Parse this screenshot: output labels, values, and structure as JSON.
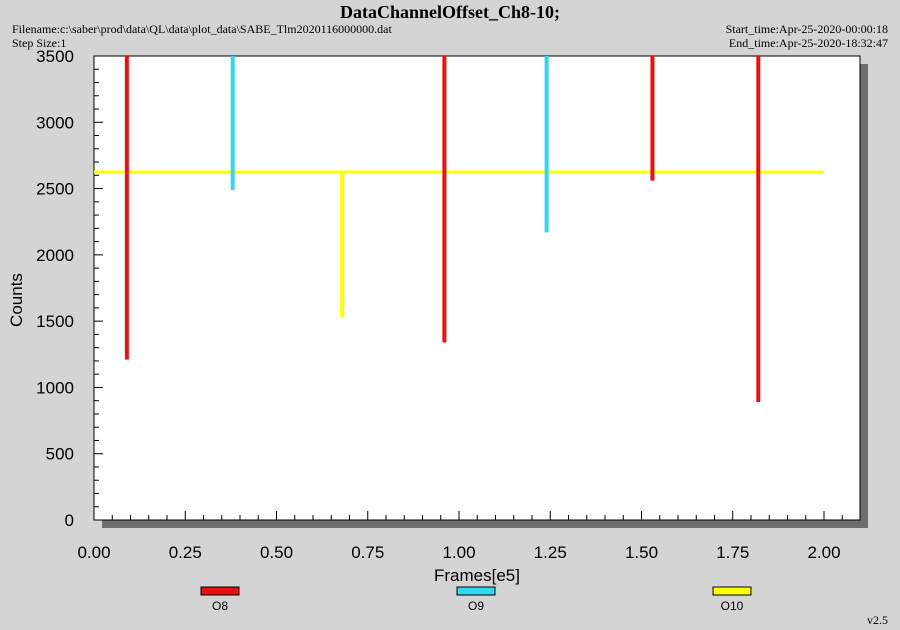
{
  "header": {
    "title": "DataChannelOffset_Ch8-10;",
    "filename": "Filename:c:\\saber\\prod\\data\\QL\\data\\plot_data\\SABE_Tlm2020116000000.dat",
    "step_size": "Step Size:1",
    "start_time": "Start_time:Apr-25-2020-00:00:18",
    "end_time": "End_time:Apr-25-2020-18:32:47",
    "version": "v2.5"
  },
  "chart_data": {
    "type": "bar",
    "xlabel": "Frames[e5]",
    "ylabel": "Counts",
    "xlim": [
      0,
      2.1
    ],
    "ylim": [
      0,
      3500
    ],
    "xticks": [
      "0.00",
      "0.25",
      "0.50",
      "0.75",
      "1.00",
      "1.25",
      "1.50",
      "1.75",
      "2.00"
    ],
    "yticks": [
      "0",
      "500",
      "1000",
      "1500",
      "2000",
      "2500",
      "3000",
      "3500"
    ],
    "grid": false,
    "baseline": 2625,
    "baseline_xrange": [
      0,
      2.0
    ],
    "series": [
      {
        "name": "O8",
        "color": "#e81010",
        "x": [
          0.09,
          0.96,
          1.53,
          1.82
        ],
        "y_low": [
          1210,
          1340,
          2560,
          890
        ],
        "y_high": [
          3500,
          3500,
          3500,
          3500
        ]
      },
      {
        "name": "O9",
        "color": "#33d6ee",
        "x": [
          0.38,
          1.24
        ],
        "y_low": [
          2490,
          2170
        ],
        "y_high": [
          3500,
          3500
        ]
      },
      {
        "name": "O10",
        "color": "#ffff00",
        "x": [
          0.68
        ],
        "y_low": [
          1530
        ],
        "y_high": [
          2625
        ]
      }
    ],
    "legend_position": "bottom"
  }
}
